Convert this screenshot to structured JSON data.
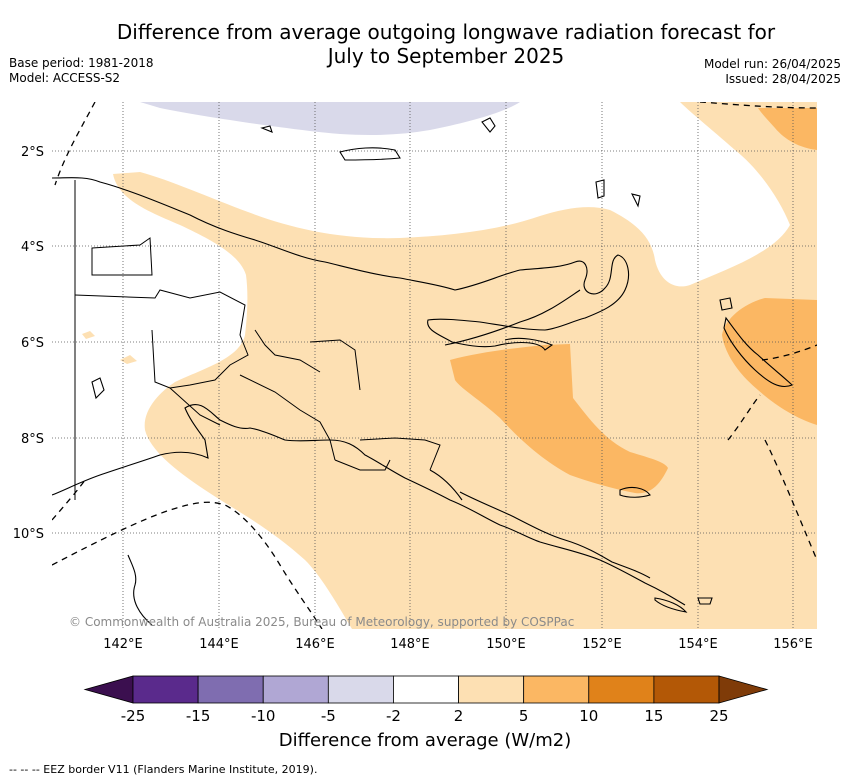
{
  "header": {
    "title_line1": "Difference from average outgoing longwave radiation forecast for",
    "title_line2": "July to September 2025",
    "base_period": "Base period: 1981-2018",
    "model": "Model: ACCESS-S2",
    "model_run": "Model run: 26/04/2025",
    "issued": "Issued: 28/04/2025"
  },
  "map": {
    "lat_labels": [
      "2°S",
      "4°S",
      "6°S",
      "8°S",
      "10°S"
    ],
    "lon_labels": [
      "142°E",
      "144°E",
      "146°E",
      "148°E",
      "150°E",
      "152°E",
      "154°E",
      "156°E"
    ],
    "copyright": "© Commonwealth of Australia 2025, Bureau of Meteorology, supported by COSPPac"
  },
  "colorbar": {
    "title": "Difference from average (W/m2)",
    "labels": [
      "-25",
      "-15",
      "-10",
      "-5",
      "-2",
      "2",
      "5",
      "10",
      "15",
      "25"
    ],
    "colors": [
      "#3b0f4f",
      "#5a2a8c",
      "#7f6db0",
      "#b0a7d4",
      "#d9d9ea",
      "#ffffff",
      "#fde0b3",
      "#fbb763",
      "#e0821a",
      "#b35806",
      "#7f3b08"
    ]
  },
  "footer": {
    "legend_text": "--  --  -- EEZ border V11 (Flanders Marine Institute, 2019)."
  }
}
